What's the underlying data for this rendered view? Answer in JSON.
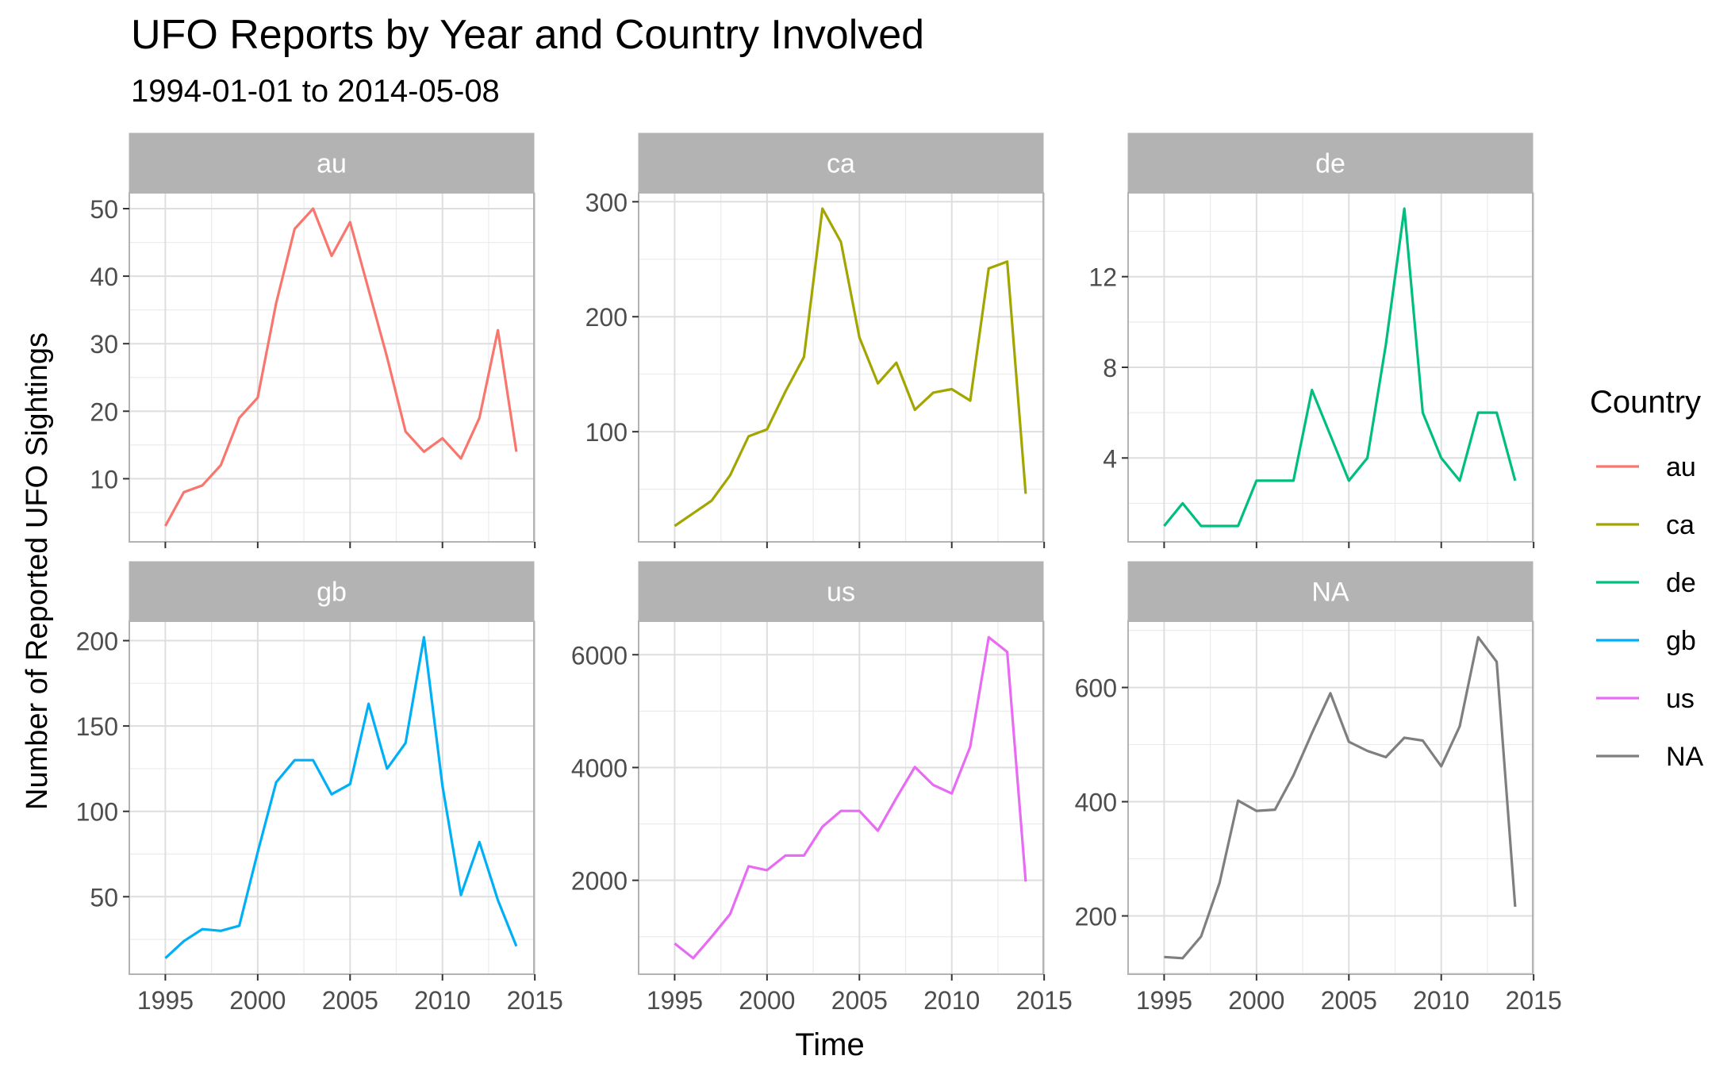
{
  "chart_data": {
    "type": "line",
    "title": "UFO Reports by Year and Country Involved",
    "subtitle": "1994-01-01 to 2014-05-08",
    "xlabel": "Time",
    "ylabel": "Number of Reported UFO Sightings",
    "legend": {
      "title": "Country",
      "position": "right"
    },
    "grid": true,
    "x": [
      1995,
      1996,
      1997,
      1998,
      1999,
      2000,
      2001,
      2002,
      2003,
      2004,
      2005,
      2006,
      2007,
      2008,
      2009,
      2010,
      2011,
      2012,
      2013,
      2014
    ],
    "xlim": [
      1993.05,
      2014.95
    ],
    "xticks": [
      1995,
      2000,
      2005,
      2010,
      2015
    ],
    "panels": [
      {
        "name": "au",
        "color": "#F8766D",
        "values": [
          3,
          8,
          9,
          12,
          19,
          22,
          36,
          47,
          50,
          43,
          48,
          38,
          28,
          17,
          14,
          16,
          13,
          19,
          32,
          14
        ],
        "ylim": [
          0.65,
          52.35
        ],
        "yticks": [
          10,
          20,
          30,
          40,
          50
        ],
        "ytick_labels": [
          "10",
          "20",
          "30",
          "40",
          "50"
        ]
      },
      {
        "name": "ca",
        "color": "#A3A500",
        "values": [
          18,
          29,
          40,
          62,
          96,
          102,
          135,
          165,
          294,
          265,
          182,
          142,
          160,
          119,
          134,
          137,
          127,
          242,
          248,
          46
        ],
        "ylim": [
          4.2,
          307.8
        ],
        "yticks": [
          100,
          200,
          300
        ],
        "ytick_labels": [
          "100",
          "200",
          "300"
        ]
      },
      {
        "name": "de",
        "color": "#00BF7D",
        "values": [
          1,
          2,
          1,
          1,
          1,
          3,
          3,
          3,
          7,
          5,
          3,
          4,
          9,
          15,
          6,
          4,
          3,
          6,
          6,
          3
        ],
        "ylim": [
          0.3,
          15.7
        ],
        "yticks": [
          4,
          8,
          12
        ],
        "ytick_labels": [
          "4",
          "8",
          "12"
        ]
      },
      {
        "name": "gb",
        "color": "#00B0F6",
        "values": [
          14,
          24,
          31,
          30,
          33,
          76,
          117,
          130,
          130,
          110,
          116,
          163,
          125,
          140,
          202,
          115,
          51,
          82,
          48,
          21
        ],
        "ylim": [
          4.6,
          211.4
        ],
        "yticks": [
          50,
          100,
          150,
          200
        ],
        "ytick_labels": [
          "50",
          "100",
          "150",
          "200"
        ]
      },
      {
        "name": "us",
        "color": "#E76BF3",
        "values": [
          880,
          620,
          1000,
          1400,
          2250,
          2180,
          2440,
          2440,
          2950,
          3230,
          3230,
          2880,
          3460,
          4010,
          3690,
          3540,
          4370,
          6310,
          6050,
          1980
        ],
        "ylim": [
          335.5,
          6594.5
        ],
        "yticks": [
          2000,
          4000,
          6000
        ],
        "ytick_labels": [
          "2000",
          "4000",
          "6000"
        ]
      },
      {
        "name": "NA",
        "color": "#7F7F7F",
        "values": [
          128,
          126,
          164,
          258,
          402,
          384,
          386,
          446,
          520,
          590,
          505,
          489,
          478,
          512,
          507,
          462,
          532,
          688,
          645,
          216
        ],
        "ylim": [
          97.9,
          716.1
        ],
        "yticks": [
          200,
          400,
          600
        ],
        "ytick_labels": [
          "200",
          "400",
          "600"
        ]
      }
    ]
  }
}
